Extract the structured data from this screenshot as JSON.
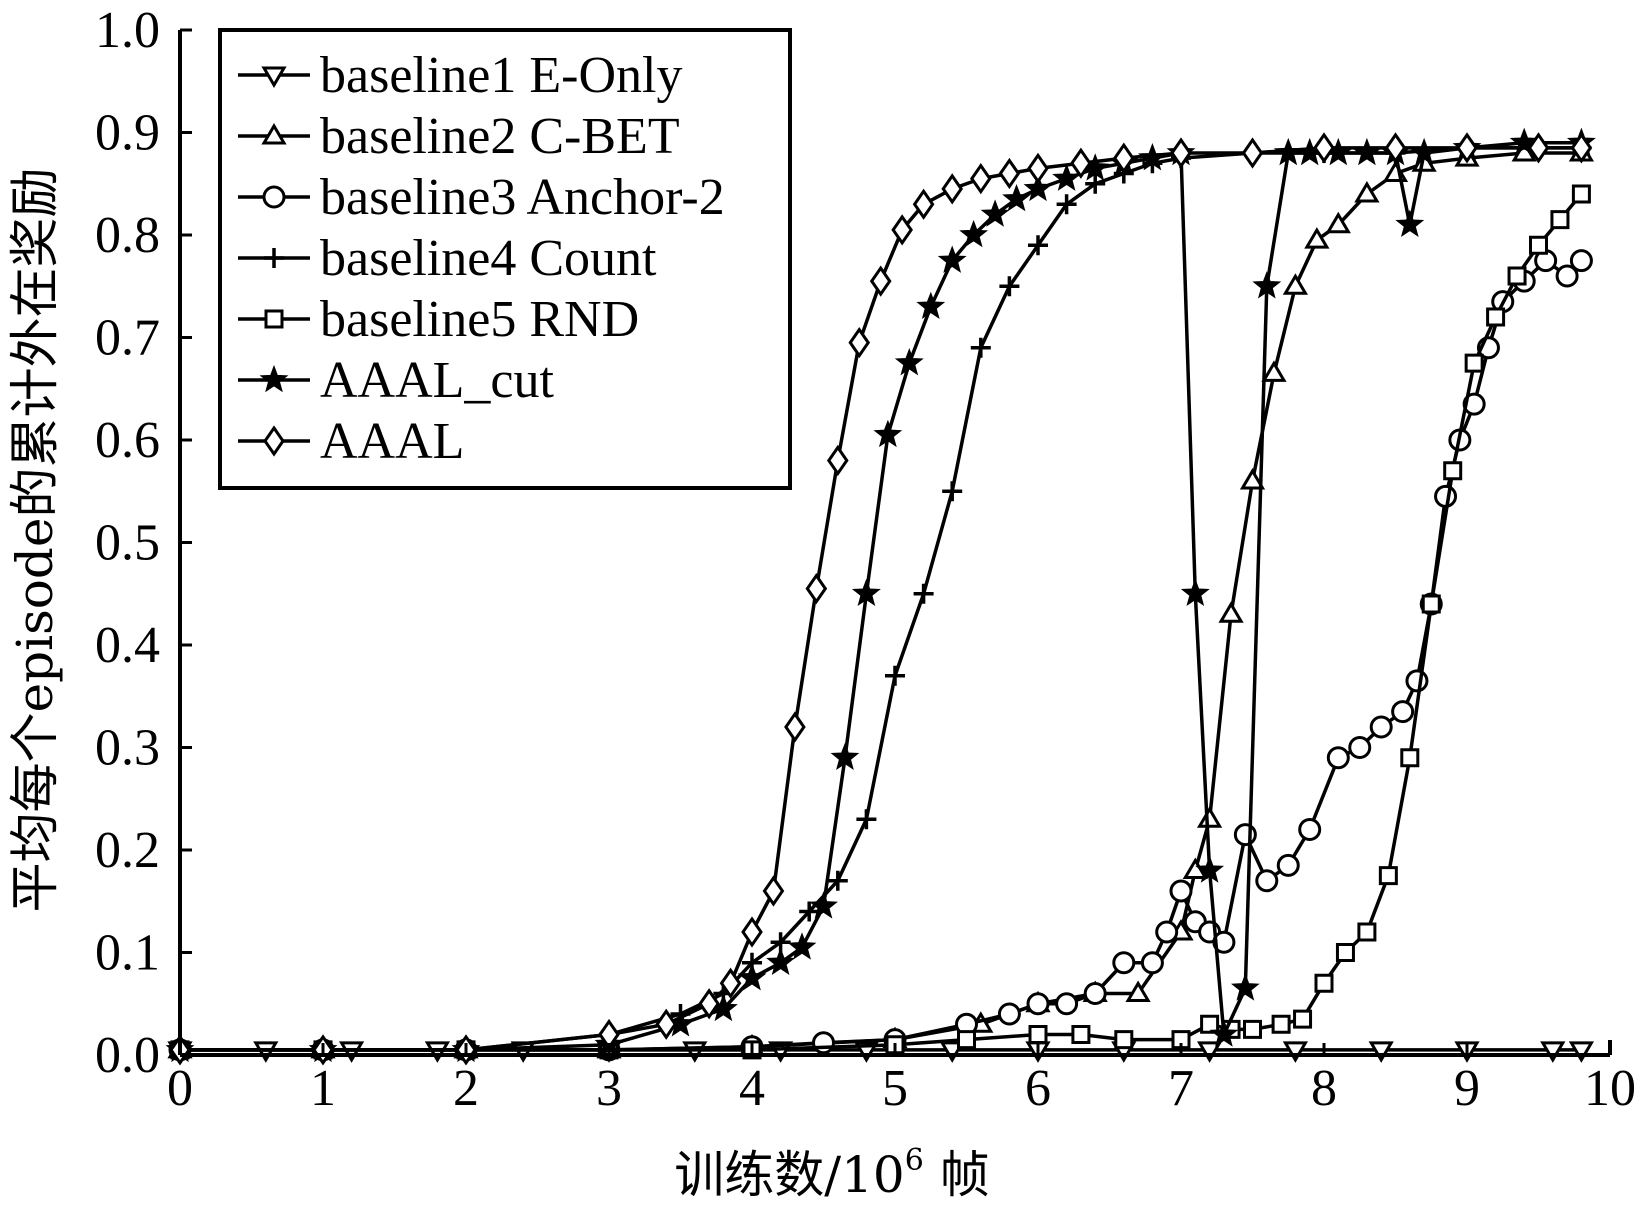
{
  "chart_data": {
    "type": "line",
    "xlabel": "训练数/10",
    "xlabel_sup": "6",
    "xlabel_suffix": " 帧",
    "ylabel": "平均每个episode的累计外在奖励",
    "xlim": [
      0,
      10
    ],
    "ylim": [
      0,
      1.0
    ],
    "xticks": [
      "0",
      "1",
      "2",
      "3",
      "4",
      "5",
      "6",
      "7",
      "8",
      "9",
      "10"
    ],
    "yticks": [
      "0.0",
      "0.1",
      "0.2",
      "0.3",
      "0.4",
      "0.5",
      "0.6",
      "0.7",
      "0.8",
      "0.9",
      "1.0"
    ],
    "legend_position": "top-left",
    "grid": false,
    "series": [
      {
        "name": "baseline1 E-Only",
        "marker": "triangle-down",
        "x": [
          0,
          0.6,
          1.2,
          1.8,
          2.4,
          3.0,
          3.6,
          4.2,
          4.8,
          5.4,
          6.0,
          6.6,
          7.2,
          7.8,
          8.4,
          9.0,
          9.6,
          9.8
        ],
        "y": [
          0.005,
          0.005,
          0.005,
          0.005,
          0.005,
          0.005,
          0.005,
          0.005,
          0.005,
          0.005,
          0.005,
          0.005,
          0.005,
          0.005,
          0.005,
          0.005,
          0.005,
          0.005
        ]
      },
      {
        "name": "baseline2 C-BET",
        "marker": "triangle-up",
        "x": [
          0,
          1,
          2,
          3,
          4,
          5,
          5.6,
          6.0,
          6.4,
          6.7,
          7.0,
          7.1,
          7.2,
          7.35,
          7.5,
          7.65,
          7.8,
          7.95,
          8.1,
          8.3,
          8.5,
          8.7,
          9.0,
          9.4,
          9.8
        ],
        "y": [
          0.005,
          0.005,
          0.005,
          0.005,
          0.008,
          0.015,
          0.03,
          0.05,
          0.06,
          0.06,
          0.12,
          0.18,
          0.23,
          0.43,
          0.56,
          0.665,
          0.75,
          0.795,
          0.81,
          0.84,
          0.86,
          0.87,
          0.875,
          0.88,
          0.88
        ]
      },
      {
        "name": "baseline3 Anchor-2",
        "marker": "circle",
        "x": [
          0,
          1,
          2,
          3,
          4,
          4.5,
          5,
          5.5,
          5.8,
          6.0,
          6.2,
          6.4,
          6.6,
          6.8,
          6.9,
          7.0,
          7.1,
          7.2,
          7.3,
          7.45,
          7.6,
          7.75,
          7.9,
          8.1,
          8.25,
          8.4,
          8.55,
          8.65,
          8.75,
          8.85,
          8.95,
          9.05,
          9.15,
          9.25,
          9.4,
          9.55,
          9.7,
          9.8
        ],
        "y": [
          0.005,
          0.005,
          0.005,
          0.005,
          0.008,
          0.012,
          0.015,
          0.03,
          0.04,
          0.05,
          0.05,
          0.06,
          0.09,
          0.09,
          0.12,
          0.16,
          0.13,
          0.12,
          0.11,
          0.215,
          0.17,
          0.185,
          0.22,
          0.29,
          0.3,
          0.32,
          0.335,
          0.365,
          0.44,
          0.545,
          0.6,
          0.635,
          0.69,
          0.735,
          0.755,
          0.775,
          0.76,
          0.775
        ]
      },
      {
        "name": "baseline4 Count",
        "marker": "plus",
        "x": [
          0,
          1,
          2,
          3,
          3.5,
          3.8,
          4.0,
          4.2,
          4.4,
          4.6,
          4.8,
          5.0,
          5.2,
          5.4,
          5.6,
          5.8,
          6.0,
          6.2,
          6.4,
          6.6,
          6.8,
          7.0,
          7.5,
          8.0,
          8.5,
          9.0,
          9.5,
          9.8
        ],
        "y": [
          0.005,
          0.005,
          0.005,
          0.02,
          0.04,
          0.06,
          0.09,
          0.11,
          0.14,
          0.17,
          0.23,
          0.37,
          0.45,
          0.55,
          0.69,
          0.75,
          0.79,
          0.83,
          0.85,
          0.86,
          0.87,
          0.875,
          0.88,
          0.88,
          0.88,
          0.885,
          0.885,
          0.885
        ]
      },
      {
        "name": "baseline5 RND",
        "marker": "square",
        "x": [
          0,
          1,
          2,
          3,
          4,
          5,
          5.5,
          6.0,
          6.3,
          6.6,
          7.0,
          7.2,
          7.35,
          7.5,
          7.7,
          7.85,
          8.0,
          8.15,
          8.3,
          8.45,
          8.6,
          8.75,
          8.9,
          9.05,
          9.2,
          9.35,
          9.5,
          9.65,
          9.8
        ],
        "y": [
          0.005,
          0.005,
          0.005,
          0.005,
          0.005,
          0.01,
          0.015,
          0.02,
          0.02,
          0.015,
          0.015,
          0.03,
          0.025,
          0.025,
          0.03,
          0.035,
          0.07,
          0.1,
          0.12,
          0.175,
          0.29,
          0.44,
          0.57,
          0.675,
          0.72,
          0.76,
          0.79,
          0.815,
          0.84
        ]
      },
      {
        "name": "AAAL_cut",
        "marker": "star",
        "x": [
          0,
          1,
          2,
          3,
          3.5,
          3.8,
          4.0,
          4.2,
          4.35,
          4.5,
          4.65,
          4.8,
          4.95,
          5.1,
          5.25,
          5.4,
          5.55,
          5.7,
          5.85,
          6.0,
          6.2,
          6.4,
          6.6,
          6.8,
          7.0,
          7.1,
          7.2,
          7.3,
          7.45,
          7.6,
          7.75,
          7.9,
          8.1,
          8.3,
          8.5,
          8.6,
          8.7,
          9.0,
          9.4,
          9.8
        ],
        "y": [
          0.005,
          0.005,
          0.005,
          0.01,
          0.03,
          0.045,
          0.075,
          0.09,
          0.105,
          0.145,
          0.29,
          0.45,
          0.605,
          0.675,
          0.73,
          0.775,
          0.8,
          0.82,
          0.835,
          0.845,
          0.855,
          0.865,
          0.87,
          0.875,
          0.88,
          0.45,
          0.18,
          0.02,
          0.065,
          0.75,
          0.88,
          0.88,
          0.88,
          0.88,
          0.88,
          0.81,
          0.88,
          0.885,
          0.89,
          0.89
        ]
      },
      {
        "name": "AAAL",
        "marker": "diamond",
        "x": [
          0,
          1,
          2,
          3,
          3.4,
          3.7,
          3.85,
          4.0,
          4.15,
          4.3,
          4.45,
          4.6,
          4.75,
          4.9,
          5.05,
          5.2,
          5.4,
          5.6,
          5.8,
          6.0,
          6.3,
          6.6,
          7.0,
          7.5,
          8.0,
          8.5,
          9.0,
          9.5,
          9.8
        ],
        "y": [
          0.005,
          0.005,
          0.005,
          0.02,
          0.03,
          0.05,
          0.07,
          0.12,
          0.16,
          0.32,
          0.455,
          0.58,
          0.695,
          0.755,
          0.805,
          0.83,
          0.845,
          0.855,
          0.86,
          0.865,
          0.87,
          0.875,
          0.88,
          0.88,
          0.885,
          0.885,
          0.885,
          0.885,
          0.885
        ]
      }
    ]
  }
}
